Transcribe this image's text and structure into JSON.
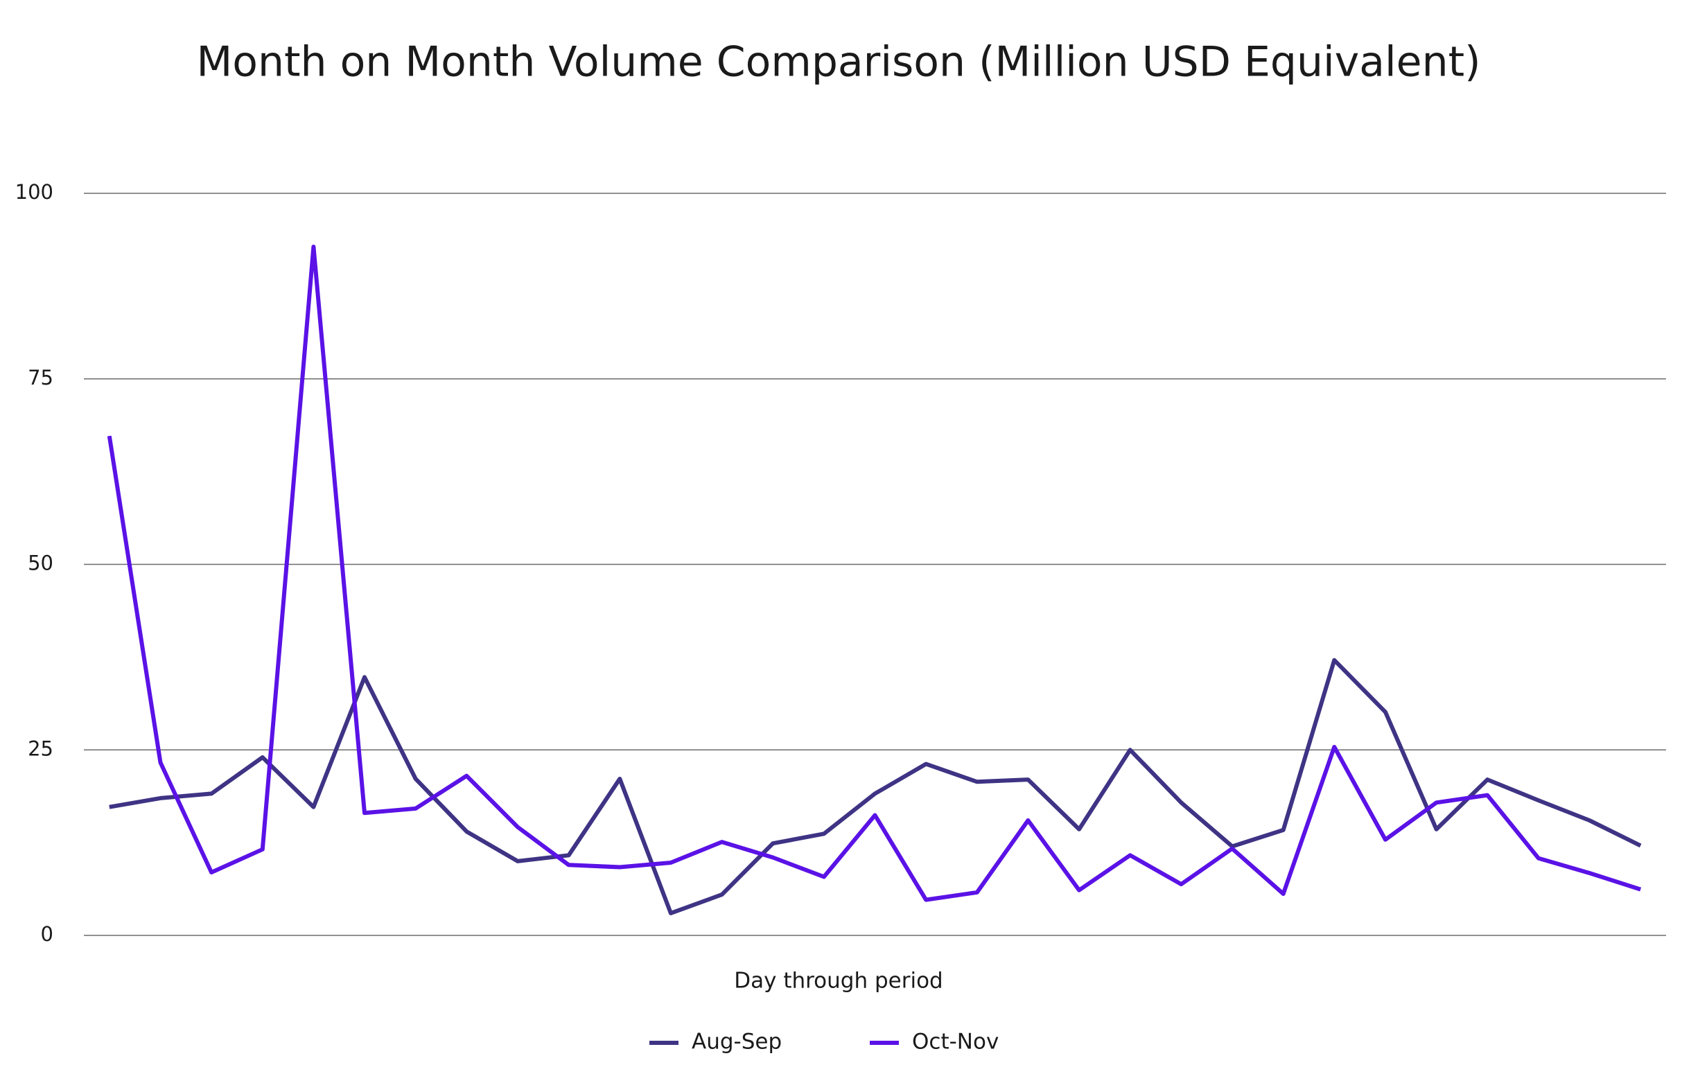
{
  "chart_data": {
    "type": "line",
    "title": "Month on Month Volume Comparison (Million USD Equivalent)",
    "x_label": "Day through period",
    "categories": [
      null,
      null,
      null,
      null,
      null,
      null,
      null,
      null,
      null,
      null,
      null,
      null,
      null,
      null,
      null,
      null,
      null,
      null,
      null,
      null,
      null,
      null,
      null,
      null,
      null,
      null,
      null,
      null,
      null,
      null,
      null
    ],
    "series": [
      {
        "name": "Aug-Sep",
        "color": "#3e3384",
        "values": [
          17.3,
          18.5,
          19.1,
          24.0,
          17.3,
          34.8,
          21.1,
          14.0,
          10.0,
          10.8,
          21.1,
          3.0,
          5.5,
          12.4,
          13.7,
          19.1,
          23.1,
          20.7,
          21.0,
          14.3,
          25.0,
          17.9,
          12.0,
          14.2,
          37.1,
          30.1,
          14.3,
          21.0,
          18.2,
          15.5,
          12.1
        ]
      },
      {
        "name": "Oct-Nov",
        "color": "#5a12e6",
        "values": [
          67.3,
          23.3,
          8.5,
          11.6,
          92.8,
          16.5,
          17.1,
          21.5,
          14.6,
          9.5,
          9.2,
          9.8,
          12.6,
          10.5,
          7.9,
          16.2,
          4.8,
          5.8,
          15.5,
          6.1,
          10.8,
          6.9,
          11.7,
          5.6,
          25.4,
          12.9,
          17.9,
          18.9,
          10.4,
          8.4,
          6.2
        ]
      }
    ],
    "ylim": [
      0,
      100
    ],
    "yticks": [
      0,
      25,
      50,
      75,
      100
    ],
    "grid": true,
    "legend": "bottom"
  }
}
